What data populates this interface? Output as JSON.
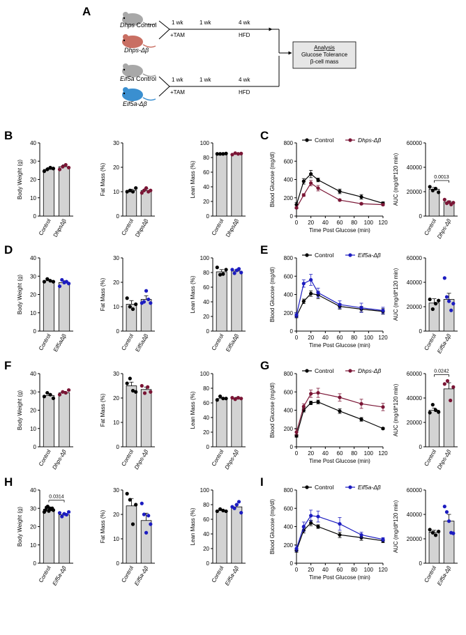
{
  "colors": {
    "control": "#000000",
    "dhps": "#7a1535",
    "eif5a": "#1c1cc0",
    "bar": "#d3d3d3",
    "mouse_gray": "#a8a8a8",
    "mouse_red": "#c96f63",
    "mouse_blue": "#3a8fd0"
  },
  "panel_letters": [
    "A",
    "B",
    "C",
    "D",
    "E",
    "F",
    "G",
    "H",
    "I"
  ],
  "schematic": {
    "top": {
      "control_label": "Control",
      "control_gene": "Dhps",
      "ko_label": "Dhps-Δβ",
      "wk1": "1 wk",
      "tam": "+TAM",
      "wk1b": "1 wk",
      "wk4": "4 wk",
      "hfd": "HFD"
    },
    "bottom": {
      "control_label": "Control",
      "control_gene": "Eif5a",
      "ko_label": "Eif5a-Δβ",
      "wk1": "1 wk",
      "tam": "+TAM",
      "wk1b": "1 wk",
      "wk4": "4 wk",
      "hfd": "HFD"
    },
    "box": {
      "title": "Analysis",
      "line1": "Glucose Tolerance",
      "line2": "β-cell mass"
    }
  },
  "chart_data": [
    {
      "id": "B1",
      "type": "bar",
      "categories": [
        "Control",
        "DhpsΔβ"
      ],
      "ylabel": "Body Weight (g)",
      "ylim": [
        0,
        40
      ],
      "yticks": [
        0,
        10,
        20,
        30,
        40
      ],
      "means": [
        25.5,
        27
      ],
      "errors": [
        1,
        1
      ],
      "points": [
        [
          24.5,
          25.5,
          26.5,
          26
        ],
        [
          25.5,
          27,
          28,
          26.5
        ]
      ],
      "kocolor": "dhps",
      "italic_labels": false
    },
    {
      "id": "B2",
      "type": "bar",
      "categories": [
        "Control",
        "DhpsΔβ"
      ],
      "ylabel": "Fat Mass (%)",
      "ylim": [
        0,
        30
      ],
      "yticks": [
        0,
        10,
        20,
        30
      ],
      "means": [
        10.5,
        10.5
      ],
      "errors": [
        0.5,
        0.8
      ],
      "points": [
        [
          10,
          10.5,
          10,
          11.5
        ],
        [
          9.5,
          10.5,
          11.5,
          10,
          10.5
        ]
      ],
      "kocolor": "dhps",
      "italic_labels": false
    },
    {
      "id": "B3",
      "type": "bar",
      "categories": [
        "Control",
        "DhpsΔβ"
      ],
      "ylabel": "Lean Mass (%)",
      "ylim": [
        0,
        100
      ],
      "yticks": [
        0,
        20,
        40,
        60,
        80,
        100
      ],
      "means": [
        85,
        85
      ],
      "errors": [
        0.5,
        0.8
      ],
      "points": [
        [
          85,
          85,
          85,
          85.5
        ],
        [
          84,
          86,
          85,
          85.5
        ]
      ],
      "kocolor": "dhps",
      "italic_labels": false
    },
    {
      "id": "C1",
      "type": "line",
      "series": [
        {
          "name": "Control",
          "color": "control"
        },
        {
          "name": "Dhps-Δβ",
          "color": "dhps"
        }
      ],
      "x": [
        0,
        10,
        20,
        30,
        60,
        90,
        120
      ],
      "values": [
        [
          125,
          380,
          460,
          395,
          270,
          210,
          140
        ],
        [
          90,
          230,
          360,
          305,
          175,
          135,
          125
        ]
      ],
      "errors": [
        [
          25,
          30,
          40,
          20,
          25,
          25,
          15
        ],
        [
          10,
          15,
          30,
          30,
          10,
          10,
          10
        ]
      ],
      "xlabel": "Time Post Glucose (min)",
      "ylabel": "Blood Glucose (mg/dl)",
      "ylim": [
        0,
        800
      ],
      "yticks": [
        0,
        200,
        400,
        600,
        800
      ],
      "xticks": [
        0,
        20,
        40,
        60,
        80,
        100,
        120
      ]
    },
    {
      "id": "C2",
      "type": "bar",
      "categories": [
        "Control",
        "Dhps-Δβ"
      ],
      "ylabel": "AUC (mg/dl*120 min)",
      "ylim": [
        0,
        60000
      ],
      "yticks": [
        0,
        20000,
        40000,
        60000
      ],
      "means": [
        22000,
        11500
      ],
      "errors": [
        1500,
        1000
      ],
      "points": [
        [
          24000,
          21000,
          22500,
          19500
        ],
        [
          13500,
          10500,
          11500,
          9500,
          11000
        ]
      ],
      "kocolor": "dhps",
      "italic_labels": true,
      "pvalue": "0.0013"
    },
    {
      "id": "D1",
      "type": "bar",
      "categories": [
        "Control",
        "Eif5aΔβ"
      ],
      "ylabel": "Body Weight (g)",
      "ylim": [
        0,
        40
      ],
      "yticks": [
        0,
        10,
        20,
        30,
        40
      ],
      "means": [
        27.5,
        26.5
      ],
      "errors": [
        0.8,
        1
      ],
      "points": [
        [
          27,
          28.5,
          27.5,
          27
        ],
        [
          24.5,
          28,
          26.5,
          27,
          26
        ]
      ],
      "kocolor": "eif5a",
      "italic_labels": false
    },
    {
      "id": "D2",
      "type": "bar",
      "categories": [
        "Control",
        "Eif5aΔβ"
      ],
      "ylabel": "Fat Mass (%)",
      "ylim": [
        0,
        30
      ],
      "yticks": [
        0,
        10,
        20,
        30
      ],
      "means": [
        11,
        13
      ],
      "errors": [
        1.5,
        1.5
      ],
      "points": [
        [
          13.5,
          10,
          9,
          11
        ],
        [
          11.5,
          12,
          16.5,
          13,
          11.5
        ]
      ],
      "kocolor": "eif5a",
      "italic_labels": false
    },
    {
      "id": "D3",
      "type": "bar",
      "categories": [
        "Control",
        "Eif5aΔβ"
      ],
      "ylabel": "Lean Mass (%)",
      "ylim": [
        0,
        100
      ],
      "yticks": [
        0,
        20,
        40,
        60,
        80,
        100
      ],
      "means": [
        81,
        82
      ],
      "errors": [
        3,
        2
      ],
      "points": [
        [
          87,
          77,
          78,
          84
        ],
        [
          84,
          79,
          83,
          85,
          80
        ]
      ],
      "kocolor": "eif5a",
      "italic_labels": false
    },
    {
      "id": "E1",
      "type": "line",
      "series": [
        {
          "name": "Control",
          "color": "control"
        },
        {
          "name": "Eif5a-Δβ",
          "color": "eif5a"
        }
      ],
      "x": [
        0,
        10,
        20,
        30,
        60,
        90,
        120
      ],
      "values": [
        [
          165,
          325,
          410,
          395,
          270,
          240,
          215
        ],
        [
          175,
          520,
          560,
          420,
          290,
          255,
          225
        ]
      ],
      "errors": [
        [
          20,
          25,
          30,
          40,
          30,
          30,
          30
        ],
        [
          25,
          40,
          60,
          50,
          40,
          50,
          35
        ]
      ],
      "xlabel": "Time Post Glucose (min)",
      "ylabel": "Blood Glucose (mg/dl)",
      "ylim": [
        0,
        800
      ],
      "yticks": [
        0,
        200,
        400,
        600,
        800
      ],
      "xticks": [
        0,
        20,
        40,
        60,
        80,
        100,
        120
      ]
    },
    {
      "id": "E2",
      "type": "bar",
      "categories": [
        "Control",
        "Eif5a-Δβ"
      ],
      "ylabel": "AUC (mg/dl*120 min)",
      "ylim": [
        0,
        60000
      ],
      "yticks": [
        0,
        20000,
        40000,
        60000
      ],
      "means": [
        23000,
        26000
      ],
      "errors": [
        3500,
        5000
      ],
      "points": [
        [
          26000,
          18000,
          22500,
          25000
        ],
        [
          43500,
          28000,
          24500,
          17000,
          22500
        ]
      ],
      "kocolor": "eif5a",
      "italic_labels": true
    },
    {
      "id": "F1",
      "type": "bar",
      "categories": [
        "Control",
        "Dhps-Δβ"
      ],
      "ylabel": "Body Weight (g)",
      "ylim": [
        0,
        40
      ],
      "yticks": [
        0,
        10,
        20,
        30,
        40
      ],
      "means": [
        28,
        29.5
      ],
      "errors": [
        1,
        0.8
      ],
      "points": [
        [
          27.5,
          29.5,
          28.5,
          26.5
        ],
        [
          28.5,
          30,
          29.5,
          31
        ]
      ],
      "kocolor": "dhps",
      "italic_labels": true
    },
    {
      "id": "F2",
      "type": "bar",
      "categories": [
        "Control",
        "Dhps-Δβ"
      ],
      "ylabel": "Fat Mass (%)",
      "ylim": [
        0,
        30
      ],
      "yticks": [
        0,
        10,
        20,
        30
      ],
      "means": [
        25,
        23.5
      ],
      "errors": [
        1.5,
        1
      ],
      "points": [
        [
          26,
          28,
          23,
          22.5
        ],
        [
          25,
          22,
          24.5,
          22.5
        ]
      ],
      "kocolor": "dhps",
      "italic_labels": true
    },
    {
      "id": "F3",
      "type": "bar",
      "categories": [
        "Control",
        "Dhps-Δβ"
      ],
      "ylabel": "Lean Mass (%)",
      "ylim": [
        0,
        100
      ],
      "yticks": [
        0,
        20,
        40,
        60,
        80,
        100
      ],
      "means": [
        66,
        66.5
      ],
      "errors": [
        1.5,
        1
      ],
      "points": [
        [
          64,
          69,
          66,
          66
        ],
        [
          67,
          65,
          67,
          66
        ]
      ],
      "kocolor": "dhps",
      "italic_labels": true
    },
    {
      "id": "G1",
      "type": "line",
      "series": [
        {
          "name": "Control",
          "color": "control"
        },
        {
          "name": "Dhps-Δβ",
          "color": "dhps"
        }
      ],
      "x": [
        0,
        10,
        20,
        30,
        60,
        90,
        120
      ],
      "values": [
        [
          120,
          400,
          480,
          490,
          390,
          300,
          200
        ],
        [
          160,
          440,
          580,
          590,
          540,
          470,
          435
        ]
      ],
      "errors": [
        [
          15,
          20,
          20,
          20,
          25,
          20,
          10
        ],
        [
          30,
          30,
          40,
          50,
          40,
          50,
          40
        ]
      ],
      "xlabel": "Time Post Glucose (min)",
      "ylabel": "Blood Glucose (mg/dl)",
      "ylim": [
        0,
        800
      ],
      "yticks": [
        0,
        200,
        400,
        600,
        800
      ],
      "xticks": [
        0,
        20,
        40,
        60,
        80,
        100,
        120
      ]
    },
    {
      "id": "G2",
      "type": "bar",
      "categories": [
        "Control",
        "Dhps-Δβ"
      ],
      "ylabel": "AUC (mg/dl*120 min)",
      "ylim": [
        0,
        60000
      ],
      "yticks": [
        0,
        20000,
        40000,
        60000
      ],
      "means": [
        30000,
        47500
      ],
      "errors": [
        1800,
        5000
      ],
      "points": [
        [
          28000,
          34500,
          30000,
          28500
        ],
        [
          51500,
          54000,
          38000,
          49000
        ]
      ],
      "kocolor": "dhps",
      "italic_labels": true,
      "pvalue": "0.0242"
    },
    {
      "id": "H1",
      "type": "bar",
      "categories": [
        "Control",
        "Eif5a-Δβ"
      ],
      "ylabel": "Body Weight (g)",
      "ylim": [
        0,
        40
      ],
      "yticks": [
        0,
        10,
        20,
        30,
        40
      ],
      "means": [
        29.5,
        26.5
      ],
      "errors": [
        0.7,
        0.6
      ],
      "points": [
        [
          28,
          29,
          30.5,
          31,
          28.5,
          30,
          29.5,
          30,
          29
        ],
        [
          27.5,
          25.5,
          27,
          26.5,
          28
        ]
      ],
      "kocolor": "eif5a",
      "italic_labels": true,
      "pvalue": "0.0314"
    },
    {
      "id": "H2",
      "type": "bar",
      "categories": [
        "Control",
        "Eif5a-Δβ"
      ],
      "ylabel": "Fat Mass (%)",
      "ylim": [
        0,
        30
      ],
      "yticks": [
        0,
        10,
        20,
        30
      ],
      "means": [
        23.5,
        17.5
      ],
      "errors": [
        3,
        3
      ],
      "points": [
        [
          28.5,
          26,
          16,
          24
        ],
        [
          24.5,
          20,
          12.5,
          19.5,
          16
        ]
      ],
      "kocolor": "eif5a",
      "italic_labels": true
    },
    {
      "id": "H3",
      "type": "bar",
      "categories": [
        "Control",
        "Eif5a-Δβ"
      ],
      "ylabel": "Lean Mass (%)",
      "ylim": [
        0,
        100
      ],
      "yticks": [
        0,
        20,
        40,
        60,
        80,
        100
      ],
      "means": [
        72,
        77
      ],
      "errors": [
        1.5,
        2.5
      ],
      "points": [
        [
          71,
          74,
          72,
          71
        ],
        [
          77,
          75,
          80,
          84,
          69
        ]
      ],
      "kocolor": "eif5a",
      "italic_labels": true
    },
    {
      "id": "I1",
      "type": "line",
      "series": [
        {
          "name": "Control",
          "color": "control"
        },
        {
          "name": "Eif5a-Δβ",
          "color": "eif5a"
        }
      ],
      "x": [
        0,
        10,
        20,
        30,
        60,
        90,
        120
      ],
      "values": [
        [
          140,
          360,
          440,
          400,
          310,
          280,
          245
        ],
        [
          160,
          400,
          520,
          510,
          430,
          310,
          260
        ]
      ],
      "errors": [
        [
          20,
          30,
          30,
          20,
          30,
          30,
          20
        ],
        [
          30,
          50,
          60,
          60,
          70,
          30,
          20
        ]
      ],
      "xlabel": "Time Post Glucose (min)",
      "ylabel": "Blood Glucose (mg/dl)",
      "ylim": [
        0,
        800
      ],
      "yticks": [
        0,
        200,
        400,
        600,
        800
      ],
      "xticks": [
        0,
        20,
        40,
        60,
        80,
        100,
        120
      ]
    },
    {
      "id": "I2",
      "type": "bar",
      "categories": [
        "Control",
        "Eif5a-Δβ"
      ],
      "ylabel": "AUC (mg/dl*120 min)",
      "ylim": [
        0,
        60000
      ],
      "yticks": [
        0,
        20000,
        40000,
        60000
      ],
      "means": [
        25500,
        34500
      ],
      "errors": [
        1500,
        5500
      ],
      "points": [
        [
          27500,
          25000,
          23000,
          26000
        ],
        [
          46500,
          42000,
          34500,
          25000,
          24500
        ]
      ],
      "kocolor": "eif5a",
      "italic_labels": true
    }
  ]
}
